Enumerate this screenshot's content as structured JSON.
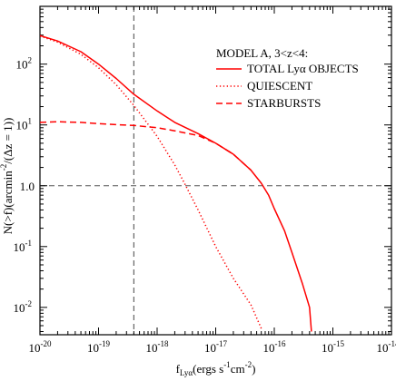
{
  "chart_data": {
    "type": "line",
    "title": "",
    "xlabel": {
      "base": "f",
      "sub": "Lyα",
      "text": "(ergs s",
      "sup1": "-1",
      "mid": "cm",
      "sup2": "-2",
      "end": ")"
    },
    "ylabel": {
      "pre": "N(>f)(arcmin",
      "sup": "-2",
      "post": "/(Δz = 1))"
    },
    "xscale": "log",
    "yscale": "log",
    "xlim_log10": [
      -20,
      -14
    ],
    "ylim_log10": [
      -2.45,
      2.95
    ],
    "x_tick_labels": [
      {
        "exp": -20,
        "label": "10",
        "sup": "-20"
      },
      {
        "exp": -19,
        "label": "10",
        "sup": "-19"
      },
      {
        "exp": -18,
        "label": "10",
        "sup": "-18"
      },
      {
        "exp": -17,
        "label": "10",
        "sup": "-17"
      },
      {
        "exp": -16,
        "label": "10",
        "sup": "-16"
      },
      {
        "exp": -15,
        "label": "10",
        "sup": "-15"
      },
      {
        "exp": -14,
        "label": "10",
        "sup": "-14"
      }
    ],
    "y_tick_labels": [
      {
        "exp": -2,
        "label": "10",
        "sup": "-2"
      },
      {
        "exp": -1,
        "label": "10",
        "sup": "-1"
      },
      {
        "exp": 0,
        "label": "1.0",
        "sup": ""
      },
      {
        "exp": 1,
        "label": "10",
        "sup": "1"
      },
      {
        "exp": 2,
        "label": "10",
        "sup": "2"
      }
    ],
    "legend": {
      "position": "top-right",
      "header": "MODEL A, 3<z<4:",
      "entries": [
        {
          "series": 0,
          "label": "TOTAL Lyα OBJECTS"
        },
        {
          "series": 1,
          "label": "QUIESCENT"
        },
        {
          "series": 2,
          "label": "STARBURSTS"
        }
      ]
    },
    "reference_lines": [
      {
        "orientation": "vertical",
        "x": 4e-19,
        "style": "dashed",
        "color": "#555555"
      },
      {
        "orientation": "horizontal",
        "y": 1.0,
        "style": "dashed",
        "color": "#555555"
      }
    ],
    "series": [
      {
        "style": "solid",
        "color": "#ff0000",
        "x": [
          1e-20,
          2e-20,
          5e-20,
          1e-19,
          2e-19,
          4e-19,
          1e-18,
          2e-18,
          5e-18,
          1e-17,
          2e-17,
          4e-17,
          6e-17,
          8e-17,
          1e-16,
          1.5e-16,
          2e-16,
          3e-16,
          4e-16,
          4.3e-16
        ],
        "y": [
          295,
          240,
          160,
          100,
          58,
          32,
          17,
          11,
          7.2,
          5.0,
          3.3,
          1.8,
          1.1,
          0.7,
          0.42,
          0.18,
          0.08,
          0.025,
          0.01,
          0.004
        ]
      },
      {
        "style": "dotted",
        "color": "#ff0000",
        "x": [
          1e-20,
          2e-20,
          5e-20,
          1e-19,
          2e-19,
          4e-19,
          1e-18,
          2e-18,
          3e-18,
          5e-18,
          1e-17,
          2e-17,
          4e-17,
          6e-17
        ],
        "y": [
          290,
          230,
          145,
          87,
          46,
          21,
          6.5,
          2.2,
          1.05,
          0.4,
          0.1,
          0.03,
          0.011,
          0.0045
        ]
      },
      {
        "style": "dashed",
        "color": "#ff0000",
        "x": [
          1e-20,
          2e-20,
          5e-20,
          1e-19,
          2e-19,
          4e-19,
          1e-18,
          2e-18,
          5e-18,
          1e-17,
          2e-17,
          4e-17
        ],
        "y": [
          11,
          11.3,
          11,
          10.5,
          10.1,
          9.8,
          9.0,
          8.0,
          6.7,
          5.0,
          3.3,
          1.8
        ]
      }
    ]
  }
}
